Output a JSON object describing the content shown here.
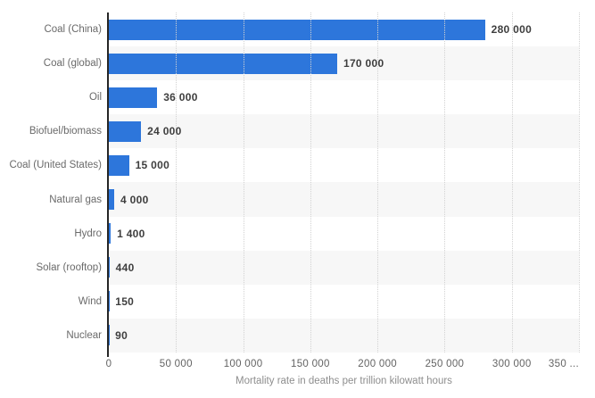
{
  "chart_data": {
    "type": "bar",
    "orientation": "horizontal",
    "categories": [
      "Coal (China)",
      "Coal (global)",
      "Oil",
      "Biofuel/biomass",
      "Coal (United States)",
      "Natural gas",
      "Hydro",
      "Solar (rooftop)",
      "Wind",
      "Nuclear"
    ],
    "values": [
      280000,
      170000,
      36000,
      24000,
      15000,
      4000,
      1400,
      440,
      150,
      90
    ],
    "value_labels": [
      "280 000",
      "170 000",
      "36 000",
      "24 000",
      "15 000",
      "4 000",
      "1 400",
      "440",
      "150",
      "90"
    ],
    "title": "",
    "xlabel": "Mortality rate in deaths per trillion kilowatt hours",
    "ylabel": "",
    "xlim": [
      0,
      350000
    ],
    "x_ticks": [
      0,
      50000,
      100000,
      150000,
      200000,
      250000,
      300000,
      350000
    ],
    "x_tick_labels": [
      "0",
      "50 000",
      "100 000",
      "150 000",
      "200 000",
      "250 000",
      "300 000",
      "350 ..."
    ],
    "grid": "vertical-dotted",
    "legend": "none",
    "colors": {
      "bar": "#2d76db",
      "row_band": "#f7f7f7",
      "axis_line": "#262626",
      "gridline": "#d2d2d2",
      "category_label": "#6a6a6a",
      "value_label": "#3e3e3e",
      "tick_label": "#636363",
      "axis_title": "#8e8e8e",
      "background": "#ffffff"
    }
  }
}
